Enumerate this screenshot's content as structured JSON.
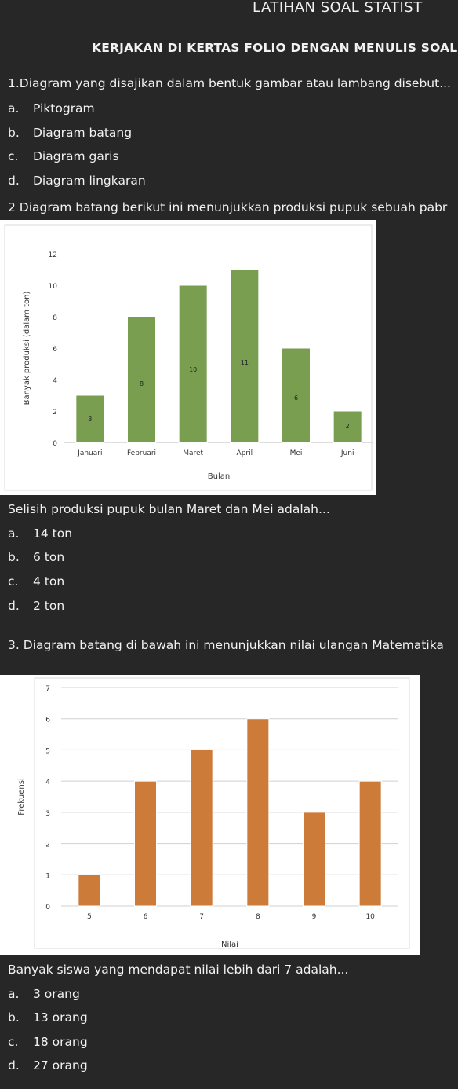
{
  "header": {
    "title": "LATIHAN SOAL STATIST",
    "instruction": "KERJAKAN DI KERTAS FOLIO DENGAN MENULIS SOAL I"
  },
  "q1": {
    "text": "1.Diagram yang disajikan dalam bentuk gambar atau lambang disebut...",
    "options": [
      {
        "letter": "a.",
        "text": "Piktogram"
      },
      {
        "letter": "b.",
        "text": "Diagram batang"
      },
      {
        "letter": "c.",
        "text": "Diagram garis"
      },
      {
        "letter": "d.",
        "text": "Diagram lingkaran"
      }
    ]
  },
  "q2": {
    "text": "2  Diagram batang berikut ini menunjukkan produksi pupuk sebuah pabr",
    "question": "Selisih produksi pupuk bulan Maret dan Mei adalah...",
    "options": [
      {
        "letter": "a.",
        "text": "14 ton"
      },
      {
        "letter": "b.",
        "text": "6 ton"
      },
      {
        "letter": "c.",
        "text": "4 ton"
      },
      {
        "letter": "d.",
        "text": "2 ton"
      }
    ]
  },
  "q3": {
    "text": "3.  Diagram batang di bawah ini menunjukkan nilai ulangan Matematika",
    "question": "Banyak siswa yang mendapat nilai lebih dari 7 adalah...",
    "options": [
      {
        "letter": "a.",
        "text": "3 orang"
      },
      {
        "letter": "b.",
        "text": "13 orang"
      },
      {
        "letter": "c.",
        "text": "18 orang"
      },
      {
        "letter": "d.",
        "text": "27 orang"
      }
    ]
  },
  "chart_data": [
    {
      "type": "bar",
      "categories": [
        "Januari",
        "Februari",
        "Maret",
        "April",
        "Mei",
        "Juni"
      ],
      "values": [
        3,
        8,
        10,
        11,
        6,
        2
      ],
      "data_labels": [
        "3",
        "8",
        "10",
        "11",
        "6",
        "2"
      ],
      "xlabel": "Bulan",
      "ylabel": "Banyak produksi (dalam ton)",
      "ylim": [
        0,
        12
      ],
      "yticks": [
        0,
        2,
        4,
        6,
        8,
        10,
        12
      ],
      "color": "#7a9e4f",
      "grid": false
    },
    {
      "type": "bar",
      "categories": [
        "5",
        "6",
        "7",
        "8",
        "9",
        "10"
      ],
      "values": [
        1,
        4,
        5,
        6,
        3,
        4
      ],
      "xlabel": "Nilai",
      "ylabel": "Frekuensi",
      "ylim": [
        0,
        7
      ],
      "yticks": [
        0,
        1,
        2,
        3,
        4,
        5,
        6,
        7
      ],
      "color": "#cd7b39",
      "grid": true
    }
  ]
}
